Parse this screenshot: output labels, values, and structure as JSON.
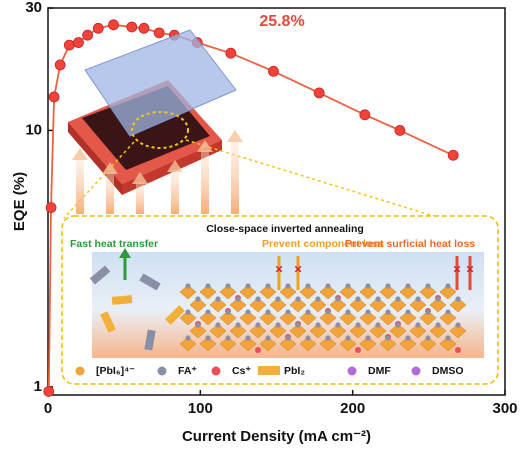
{
  "chart_data": {
    "type": "line",
    "x_label": "Current Density (mA cm⁻²)",
    "y_label": "EQE (%)",
    "annotation": "25.8%",
    "log_y": true,
    "color": "#f0603e",
    "x": [
      0.5,
      2,
      4,
      8,
      14,
      20,
      26,
      33,
      43,
      55,
      63,
      73,
      83,
      98,
      120,
      148,
      178,
      208,
      231,
      266
    ],
    "values": [
      0.96,
      5.0,
      13.5,
      18,
      21.5,
      22,
      23.5,
      25,
      25.8,
      25.3,
      25,
      24,
      23.5,
      22,
      20,
      17,
      14,
      11.5,
      10,
      8
    ],
    "xlim": [
      0,
      300
    ],
    "xticks": [
      0,
      100,
      200,
      300
    ],
    "ylim": [
      0.93,
      30
    ],
    "yticks": [
      1,
      10,
      30
    ],
    "inset": {
      "title": "Close-space inverted annealing",
      "fast": "Fast heat transfer",
      "component": "Prevent component loss",
      "surficial": "Prevent surficial heat loss",
      "legend": [
        "[PbI₆]⁴⁻",
        "FA⁺",
        "Cs⁺",
        "PbI₂",
        "DMF",
        "DMSO"
      ]
    }
  }
}
